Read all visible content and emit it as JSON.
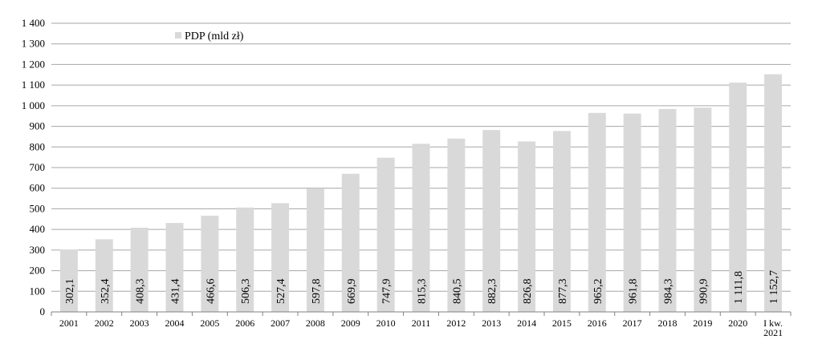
{
  "chart_data": {
    "type": "bar",
    "legend": "PDP (mld zł)",
    "legend_position": "top-left",
    "grid": true,
    "ylim": [
      0,
      1400
    ],
    "yticks": [
      "0",
      "100",
      "200",
      "300",
      "400",
      "500",
      "600",
      "700",
      "800",
      "900",
      "1 000",
      "1 100",
      "1 200",
      "1 300",
      "1 400"
    ],
    "categories": [
      "2001",
      "2002",
      "2003",
      "2004",
      "2005",
      "2006",
      "2007",
      "2008",
      "2009",
      "2010",
      "2011",
      "2012",
      "2013",
      "2014",
      "2015",
      "2016",
      "2017",
      "2018",
      "2019",
      "2020",
      "I kw.\n2021"
    ],
    "values": [
      302.1,
      352.4,
      408.3,
      431.4,
      466.6,
      506.3,
      527.4,
      597.8,
      669.9,
      747.9,
      815.3,
      840.5,
      882.3,
      826.8,
      877.3,
      965.2,
      961.8,
      984.3,
      990.9,
      1111.8,
      1152.7
    ],
    "value_labels": [
      "302,1",
      "352,4",
      "408,3",
      "431,4",
      "466,6",
      "506,3",
      "527,4",
      "597,8",
      "669,9",
      "747,9",
      "815,3",
      "840,5",
      "882,3",
      "826,8",
      "877,3",
      "965,2",
      "961,8",
      "984,3",
      "990,9",
      "1 111,8",
      "1 152,7"
    ],
    "bar_color": "#d9d9d9",
    "grid_color": "#a6a6a6"
  }
}
